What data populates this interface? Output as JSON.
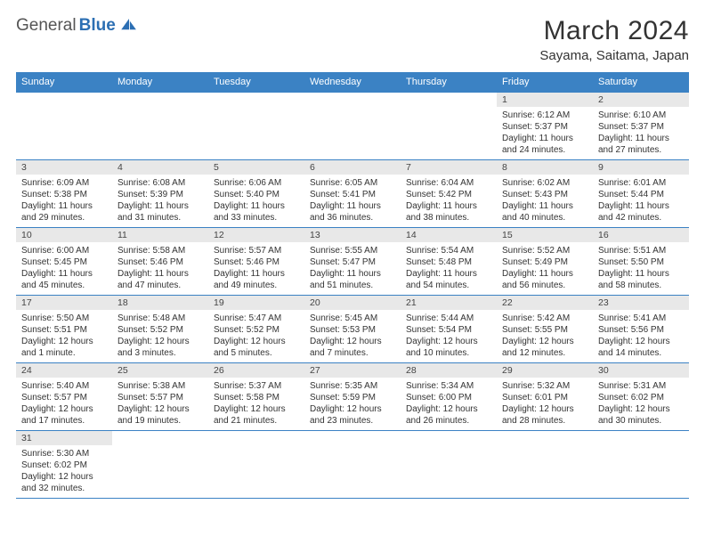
{
  "logo": {
    "part1": "General",
    "part2": "Blue"
  },
  "title": "March 2024",
  "location": "Sayama, Saitama, Japan",
  "colors": {
    "header_bg": "#3b82c4",
    "header_text": "#ffffff",
    "daynum_bg": "#e8e8e8",
    "border": "#3b82c4",
    "logo_blue": "#2c6fb3"
  },
  "weekdays": [
    "Sunday",
    "Monday",
    "Tuesday",
    "Wednesday",
    "Thursday",
    "Friday",
    "Saturday"
  ],
  "weeks": [
    [
      null,
      null,
      null,
      null,
      null,
      {
        "n": "1",
        "sunrise": "Sunrise: 6:12 AM",
        "sunset": "Sunset: 5:37 PM",
        "daylight": "Daylight: 11 hours and 24 minutes."
      },
      {
        "n": "2",
        "sunrise": "Sunrise: 6:10 AM",
        "sunset": "Sunset: 5:37 PM",
        "daylight": "Daylight: 11 hours and 27 minutes."
      }
    ],
    [
      {
        "n": "3",
        "sunrise": "Sunrise: 6:09 AM",
        "sunset": "Sunset: 5:38 PM",
        "daylight": "Daylight: 11 hours and 29 minutes."
      },
      {
        "n": "4",
        "sunrise": "Sunrise: 6:08 AM",
        "sunset": "Sunset: 5:39 PM",
        "daylight": "Daylight: 11 hours and 31 minutes."
      },
      {
        "n": "5",
        "sunrise": "Sunrise: 6:06 AM",
        "sunset": "Sunset: 5:40 PM",
        "daylight": "Daylight: 11 hours and 33 minutes."
      },
      {
        "n": "6",
        "sunrise": "Sunrise: 6:05 AM",
        "sunset": "Sunset: 5:41 PM",
        "daylight": "Daylight: 11 hours and 36 minutes."
      },
      {
        "n": "7",
        "sunrise": "Sunrise: 6:04 AM",
        "sunset": "Sunset: 5:42 PM",
        "daylight": "Daylight: 11 hours and 38 minutes."
      },
      {
        "n": "8",
        "sunrise": "Sunrise: 6:02 AM",
        "sunset": "Sunset: 5:43 PM",
        "daylight": "Daylight: 11 hours and 40 minutes."
      },
      {
        "n": "9",
        "sunrise": "Sunrise: 6:01 AM",
        "sunset": "Sunset: 5:44 PM",
        "daylight": "Daylight: 11 hours and 42 minutes."
      }
    ],
    [
      {
        "n": "10",
        "sunrise": "Sunrise: 6:00 AM",
        "sunset": "Sunset: 5:45 PM",
        "daylight": "Daylight: 11 hours and 45 minutes."
      },
      {
        "n": "11",
        "sunrise": "Sunrise: 5:58 AM",
        "sunset": "Sunset: 5:46 PM",
        "daylight": "Daylight: 11 hours and 47 minutes."
      },
      {
        "n": "12",
        "sunrise": "Sunrise: 5:57 AM",
        "sunset": "Sunset: 5:46 PM",
        "daylight": "Daylight: 11 hours and 49 minutes."
      },
      {
        "n": "13",
        "sunrise": "Sunrise: 5:55 AM",
        "sunset": "Sunset: 5:47 PM",
        "daylight": "Daylight: 11 hours and 51 minutes."
      },
      {
        "n": "14",
        "sunrise": "Sunrise: 5:54 AM",
        "sunset": "Sunset: 5:48 PM",
        "daylight": "Daylight: 11 hours and 54 minutes."
      },
      {
        "n": "15",
        "sunrise": "Sunrise: 5:52 AM",
        "sunset": "Sunset: 5:49 PM",
        "daylight": "Daylight: 11 hours and 56 minutes."
      },
      {
        "n": "16",
        "sunrise": "Sunrise: 5:51 AM",
        "sunset": "Sunset: 5:50 PM",
        "daylight": "Daylight: 11 hours and 58 minutes."
      }
    ],
    [
      {
        "n": "17",
        "sunrise": "Sunrise: 5:50 AM",
        "sunset": "Sunset: 5:51 PM",
        "daylight": "Daylight: 12 hours and 1 minute."
      },
      {
        "n": "18",
        "sunrise": "Sunrise: 5:48 AM",
        "sunset": "Sunset: 5:52 PM",
        "daylight": "Daylight: 12 hours and 3 minutes."
      },
      {
        "n": "19",
        "sunrise": "Sunrise: 5:47 AM",
        "sunset": "Sunset: 5:52 PM",
        "daylight": "Daylight: 12 hours and 5 minutes."
      },
      {
        "n": "20",
        "sunrise": "Sunrise: 5:45 AM",
        "sunset": "Sunset: 5:53 PM",
        "daylight": "Daylight: 12 hours and 7 minutes."
      },
      {
        "n": "21",
        "sunrise": "Sunrise: 5:44 AM",
        "sunset": "Sunset: 5:54 PM",
        "daylight": "Daylight: 12 hours and 10 minutes."
      },
      {
        "n": "22",
        "sunrise": "Sunrise: 5:42 AM",
        "sunset": "Sunset: 5:55 PM",
        "daylight": "Daylight: 12 hours and 12 minutes."
      },
      {
        "n": "23",
        "sunrise": "Sunrise: 5:41 AM",
        "sunset": "Sunset: 5:56 PM",
        "daylight": "Daylight: 12 hours and 14 minutes."
      }
    ],
    [
      {
        "n": "24",
        "sunrise": "Sunrise: 5:40 AM",
        "sunset": "Sunset: 5:57 PM",
        "daylight": "Daylight: 12 hours and 17 minutes."
      },
      {
        "n": "25",
        "sunrise": "Sunrise: 5:38 AM",
        "sunset": "Sunset: 5:57 PM",
        "daylight": "Daylight: 12 hours and 19 minutes."
      },
      {
        "n": "26",
        "sunrise": "Sunrise: 5:37 AM",
        "sunset": "Sunset: 5:58 PM",
        "daylight": "Daylight: 12 hours and 21 minutes."
      },
      {
        "n": "27",
        "sunrise": "Sunrise: 5:35 AM",
        "sunset": "Sunset: 5:59 PM",
        "daylight": "Daylight: 12 hours and 23 minutes."
      },
      {
        "n": "28",
        "sunrise": "Sunrise: 5:34 AM",
        "sunset": "Sunset: 6:00 PM",
        "daylight": "Daylight: 12 hours and 26 minutes."
      },
      {
        "n": "29",
        "sunrise": "Sunrise: 5:32 AM",
        "sunset": "Sunset: 6:01 PM",
        "daylight": "Daylight: 12 hours and 28 minutes."
      },
      {
        "n": "30",
        "sunrise": "Sunrise: 5:31 AM",
        "sunset": "Sunset: 6:02 PM",
        "daylight": "Daylight: 12 hours and 30 minutes."
      }
    ],
    [
      {
        "n": "31",
        "sunrise": "Sunrise: 5:30 AM",
        "sunset": "Sunset: 6:02 PM",
        "daylight": "Daylight: 12 hours and 32 minutes."
      },
      null,
      null,
      null,
      null,
      null,
      null
    ]
  ]
}
